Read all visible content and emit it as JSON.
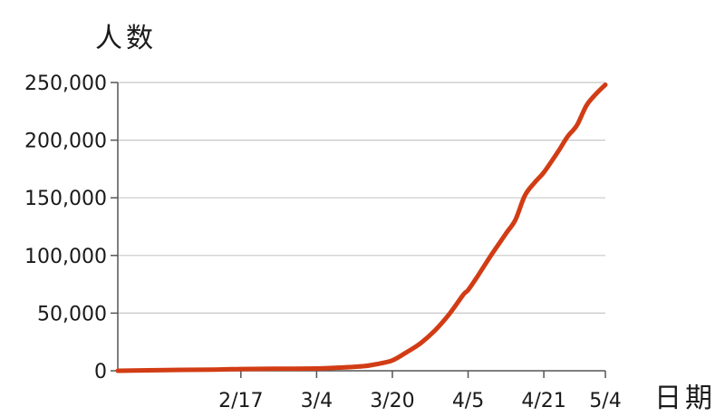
{
  "chart_data": {
    "type": "line",
    "ylabel": "人数",
    "xlabel": "日期",
    "ylim": [
      0,
      250000
    ],
    "y_ticks": [
      0,
      50000,
      100000,
      150000,
      200000,
      250000
    ],
    "y_tick_labels": [
      "0",
      "50,000",
      "100,000",
      "150,000",
      "200,000",
      "250,000"
    ],
    "x_ticks": [
      "2/17",
      "3/4",
      "3/20",
      "4/5",
      "4/21",
      "5/4"
    ],
    "xlim": [
      "1/22",
      "5/4"
    ],
    "grid": true,
    "legend": "none",
    "colors": {
      "line": "#d23c14",
      "grid": "#c8c8c8",
      "axis": "#555555"
    },
    "series": [
      {
        "x": [
          "1/22",
          "2/1",
          "2/11",
          "2/17",
          "2/24",
          "3/4",
          "3/10",
          "3/14",
          "3/17",
          "3/20",
          "3/23",
          "3/26",
          "3/29",
          "4/1",
          "4/4",
          "4/5",
          "4/7",
          "4/10",
          "4/13",
          "4/15",
          "4/17",
          "4/19",
          "4/21",
          "4/24",
          "4/26",
          "4/28",
          "4/30",
          "5/2",
          "5/4"
        ],
        "values": [
          0,
          600,
          1000,
          1500,
          1700,
          2000,
          3000,
          4000,
          6000,
          9000,
          16000,
          24000,
          35000,
          49000,
          66000,
          70000,
          82000,
          101000,
          119000,
          131000,
          152000,
          163000,
          172000,
          190000,
          203000,
          213000,
          230000,
          240000,
          248000
        ]
      }
    ]
  }
}
